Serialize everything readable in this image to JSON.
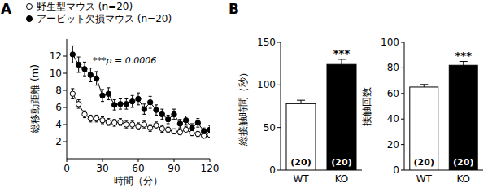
{
  "chart_data": [
    {
      "type": "line",
      "panel_label": "A",
      "x_label": "時間（分）",
      "y_label": "総移動距離 (m)",
      "annotation": "***p = 0.0006",
      "x": [
        5,
        10,
        15,
        20,
        25,
        30,
        35,
        40,
        45,
        50,
        55,
        60,
        65,
        70,
        75,
        80,
        85,
        90,
        95,
        100,
        105,
        110,
        115,
        120
      ],
      "xlim": [
        0,
        120
      ],
      "xticks": [
        0,
        30,
        60,
        90,
        120
      ],
      "ylim": [
        0,
        14
      ],
      "yticks": [
        2,
        4,
        6,
        8,
        10,
        12
      ],
      "grid": false,
      "legend": "top-left",
      "series": [
        {
          "name": "野生型マウス (n=20)",
          "color": "#000000",
          "marker": "circle-open",
          "values": [
            7.6,
            6.4,
            5.2,
            4.7,
            4.7,
            4.5,
            4.3,
            4.2,
            4.3,
            4.0,
            4.0,
            3.8,
            4.0,
            3.6,
            3.9,
            3.5,
            3.4,
            3.2,
            3.1,
            3.4,
            3.0,
            2.9,
            2.7,
            2.8
          ],
          "errors": [
            0.6,
            0.5,
            0.4,
            0.4,
            0.4,
            0.4,
            0.4,
            0.4,
            0.4,
            0.4,
            0.4,
            0.4,
            0.4,
            0.4,
            0.4,
            0.4,
            0.3,
            0.3,
            0.3,
            0.4,
            0.3,
            0.3,
            0.3,
            0.3
          ]
        },
        {
          "name": "アービット欠損マウス (n=20)",
          "color": "#000000",
          "marker": "circle",
          "values": [
            12.2,
            11.0,
            10.5,
            9.8,
            9.4,
            7.4,
            7.6,
            6.3,
            6.4,
            6.4,
            6.7,
            7.0,
            5.8,
            6.6,
            5.7,
            5.2,
            4.6,
            5.2,
            4.1,
            4.5,
            3.6,
            4.2,
            3.2,
            3.4
          ],
          "errors": [
            1.0,
            0.9,
            0.8,
            0.8,
            0.8,
            0.7,
            0.7,
            0.6,
            0.6,
            0.6,
            0.7,
            0.7,
            0.6,
            0.7,
            0.6,
            0.6,
            0.5,
            0.6,
            0.5,
            0.5,
            0.5,
            0.5,
            0.4,
            0.5
          ]
        }
      ]
    },
    {
      "type": "bar",
      "panel_label": "B",
      "y_label": "総接触時間（秒）",
      "categories": [
        "WT",
        "KO"
      ],
      "values": [
        78,
        124
      ],
      "errors": [
        4,
        6
      ],
      "n_labels": [
        "(20)",
        "(20)"
      ],
      "colors": [
        "#ffffff",
        "#000000"
      ],
      "annotation": "***",
      "ylim": [
        0,
        150
      ],
      "yticks": [
        0,
        50,
        100,
        150
      ],
      "grid": false
    },
    {
      "type": "bar",
      "y_label": "接触回数",
      "categories": [
        "WT",
        "KO"
      ],
      "values": [
        65,
        82
      ],
      "errors": [
        2,
        3
      ],
      "n_labels": [
        "(20)",
        "(20)"
      ],
      "colors": [
        "#ffffff",
        "#000000"
      ],
      "annotation": "***",
      "ylim": [
        0,
        100
      ],
      "yticks": [
        0,
        20,
        40,
        60,
        80,
        100
      ],
      "grid": false
    }
  ]
}
